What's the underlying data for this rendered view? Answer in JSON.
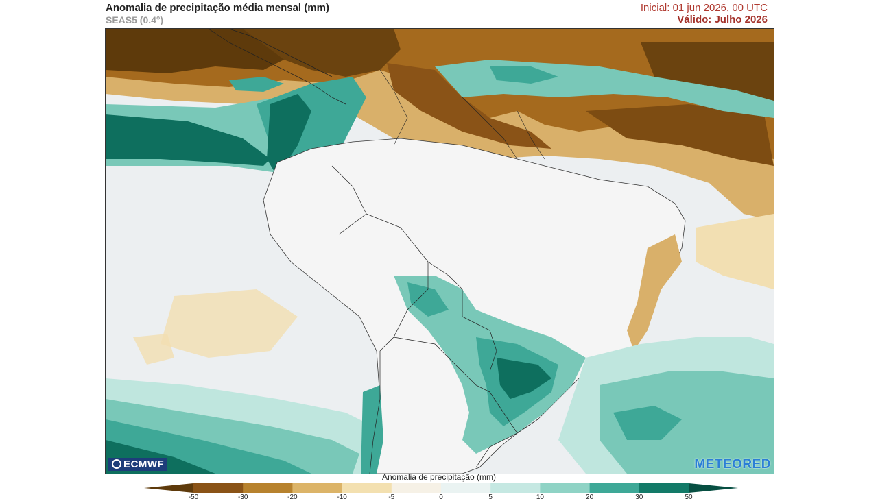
{
  "header": {
    "title": "Anomalia de precipitação média mensal (mm)",
    "subtitle": "SEAS5 (0.4°)",
    "initial": "Inicial: 01 jun 2026, 00 UTC",
    "valid": "Válido: Julho 2026"
  },
  "logos": {
    "left": "ECMWF",
    "right": "METEORED"
  },
  "colorbar": {
    "title": "Anomalia de precipitação (mm)",
    "ticks": [
      "-50",
      "-30",
      "-20",
      "-10",
      "-5",
      "0",
      "5",
      "10",
      "20",
      "30",
      "50"
    ],
    "colors": [
      "#5e3a0b",
      "#8a5317",
      "#b7822e",
      "#dcb468",
      "#f3e0b0",
      "#f6f1e6",
      "#eaf3f2",
      "#c5e8e2",
      "#8fd3c5",
      "#3ea897",
      "#137a68",
      "#074f42"
    ]
  },
  "palette": {
    "ocean": "#eceff1",
    "land": "#f4f4f4",
    "brown_dark": "#5e3a0b",
    "brown": "#a56a1e",
    "tan": "#d9b06a",
    "cream": "#f2dfb2",
    "teal_light": "#bfe6de",
    "teal": "#79c8b8",
    "teal_mid": "#3ea897",
    "teal_dark": "#0e6f5e"
  }
}
